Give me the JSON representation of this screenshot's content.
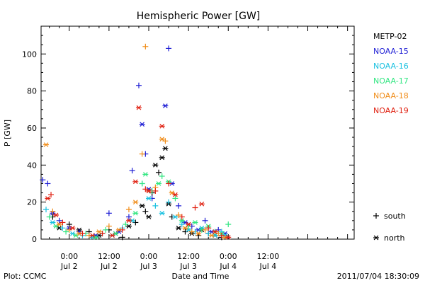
{
  "chart_data": {
    "type": "scatter",
    "title": "Hemispheric Power [GW]",
    "xlabel": "Date and Time",
    "ylabel": "P [GW]",
    "xlim_hours": [
      -8.5,
      86
    ],
    "ylim": [
      0,
      115
    ],
    "x_ticks": [
      {
        "hours": 0,
        "time": "0:00",
        "date": "Jul 2"
      },
      {
        "hours": 12,
        "time": "12:00",
        "date": "Jul 2"
      },
      {
        "hours": 24,
        "time": "0:00",
        "date": "Jul 3"
      },
      {
        "hours": 36,
        "time": "12:00",
        "date": "Jul 3"
      },
      {
        "hours": 48,
        "time": "0:00",
        "date": "Jul 4"
      },
      {
        "hours": 60,
        "time": "12:00",
        "date": "Jul 4"
      }
    ],
    "y_ticks": [
      0,
      20,
      40,
      60,
      80,
      100
    ],
    "legend": {
      "placement": "right",
      "markers": [
        {
          "symbol": "+",
          "label": "south"
        },
        {
          "symbol": "*",
          "label": "north"
        }
      ]
    },
    "series": [
      {
        "name": "METP-02",
        "color": "#000000",
        "points": [
          [
            -5,
            12,
            "+"
          ],
          [
            -3,
            6,
            "*"
          ],
          [
            0,
            8,
            "+"
          ],
          [
            3,
            5,
            "*"
          ],
          [
            6,
            4,
            "+"
          ],
          [
            9,
            2,
            "*"
          ],
          [
            12,
            5,
            "+"
          ],
          [
            14,
            3,
            "*"
          ],
          [
            16,
            1,
            "+"
          ],
          [
            18,
            7,
            "*"
          ],
          [
            20,
            9,
            "+"
          ],
          [
            22,
            18,
            "*"
          ],
          [
            23,
            15,
            "+"
          ],
          [
            24,
            12,
            "*"
          ],
          [
            25,
            25,
            "+"
          ],
          [
            26,
            40,
            "*"
          ],
          [
            27,
            36,
            "+"
          ],
          [
            28,
            44,
            "*"
          ],
          [
            29,
            49,
            "*"
          ],
          [
            30,
            19,
            "*"
          ],
          [
            31,
            12,
            "+"
          ],
          [
            33,
            6,
            "*"
          ],
          [
            35,
            4,
            "+"
          ],
          [
            37,
            3,
            "*"
          ],
          [
            39,
            2,
            "+"
          ],
          [
            40,
            5,
            "*"
          ],
          [
            42,
            3,
            "+"
          ],
          [
            44,
            2,
            "*"
          ],
          [
            46,
            1,
            "+"
          ]
        ]
      },
      {
        "name": "NOAA-15",
        "color": "#1c1cd4",
        "points": [
          [
            -8,
            32,
            "+"
          ],
          [
            -6.5,
            30,
            "+"
          ],
          [
            -5,
            14,
            "*"
          ],
          [
            -3,
            10,
            "+"
          ],
          [
            0,
            6,
            "*"
          ],
          [
            3,
            4,
            "+"
          ],
          [
            8,
            2,
            "*"
          ],
          [
            12,
            14,
            "+"
          ],
          [
            15,
            4,
            "*"
          ],
          [
            18,
            12,
            "+"
          ],
          [
            19,
            37,
            "+"
          ],
          [
            21,
            83,
            "+"
          ],
          [
            22,
            62,
            "*"
          ],
          [
            23,
            46,
            "+"
          ],
          [
            24,
            27,
            "*"
          ],
          [
            25,
            22,
            "+"
          ],
          [
            29,
            72,
            "*"
          ],
          [
            30,
            103,
            "+"
          ],
          [
            31,
            30,
            "*"
          ],
          [
            33,
            18,
            "+"
          ],
          [
            35,
            9,
            "*"
          ],
          [
            37,
            7,
            "+"
          ],
          [
            39,
            5,
            "*"
          ],
          [
            41,
            10,
            "+"
          ],
          [
            43,
            4,
            "*"
          ],
          [
            45,
            5,
            "+"
          ],
          [
            47,
            3,
            "*"
          ]
        ]
      },
      {
        "name": "NOAA-16",
        "color": "#18c0e0",
        "points": [
          [
            -7,
            16,
            "+"
          ],
          [
            -5,
            9,
            "*"
          ],
          [
            -2,
            6,
            "+"
          ],
          [
            1,
            3,
            "*"
          ],
          [
            4,
            2,
            "+"
          ],
          [
            7,
            1,
            "*"
          ],
          [
            10,
            3,
            "+"
          ],
          [
            13,
            2,
            "*"
          ],
          [
            16,
            6,
            "+"
          ],
          [
            19,
            10,
            "*"
          ],
          [
            22,
            30,
            "+"
          ],
          [
            24,
            22,
            "*"
          ],
          [
            26,
            18,
            "+"
          ],
          [
            28,
            14,
            "*"
          ],
          [
            30,
            20,
            "+"
          ],
          [
            32,
            12,
            "*"
          ],
          [
            34,
            8,
            "+"
          ],
          [
            36,
            5,
            "*"
          ],
          [
            38,
            4,
            "+"
          ],
          [
            40,
            6,
            "*"
          ],
          [
            42,
            3,
            "+"
          ],
          [
            44,
            2,
            "*"
          ],
          [
            46,
            4,
            "+"
          ],
          [
            47,
            2,
            "*"
          ]
        ]
      },
      {
        "name": "NOAA-17",
        "color": "#30e680",
        "points": [
          [
            -6,
            12,
            "+"
          ],
          [
            -4,
            7,
            "*"
          ],
          [
            -1,
            4,
            "+"
          ],
          [
            2,
            2,
            "*"
          ],
          [
            5,
            3,
            "+"
          ],
          [
            8,
            1,
            "*"
          ],
          [
            11,
            5,
            "+"
          ],
          [
            14,
            3,
            "*"
          ],
          [
            17,
            8,
            "+"
          ],
          [
            20,
            14,
            "*"
          ],
          [
            22,
            30,
            "+"
          ],
          [
            23,
            35,
            "*"
          ],
          [
            25,
            26,
            "+"
          ],
          [
            27,
            30,
            "*"
          ],
          [
            28,
            34,
            "+"
          ],
          [
            30,
            31,
            "*"
          ],
          [
            32,
            22,
            "+"
          ],
          [
            34,
            10,
            "*"
          ],
          [
            36,
            7,
            "+"
          ],
          [
            38,
            9,
            "*"
          ],
          [
            40,
            5,
            "+"
          ],
          [
            42,
            7,
            "*"
          ],
          [
            44,
            4,
            "+"
          ],
          [
            46,
            3,
            "*"
          ],
          [
            48,
            8,
            "+"
          ]
        ]
      },
      {
        "name": "NOAA-18",
        "color": "#f08c18",
        "points": [
          [
            -7,
            51,
            "*"
          ],
          [
            -5,
            15,
            "+"
          ],
          [
            -3,
            8,
            "*"
          ],
          [
            0,
            5,
            "+"
          ],
          [
            3,
            3,
            "*"
          ],
          [
            6,
            2,
            "+"
          ],
          [
            9,
            4,
            "*"
          ],
          [
            12,
            7,
            "+"
          ],
          [
            15,
            5,
            "*"
          ],
          [
            18,
            16,
            "+"
          ],
          [
            20,
            20,
            "*"
          ],
          [
            22,
            46,
            "+"
          ],
          [
            23,
            104,
            "+"
          ],
          [
            24,
            26,
            "*"
          ],
          [
            26,
            28,
            "+"
          ],
          [
            28,
            54,
            "*"
          ],
          [
            29,
            53,
            "+"
          ],
          [
            31,
            25,
            "*"
          ],
          [
            33,
            13,
            "+"
          ],
          [
            35,
            6,
            "*"
          ],
          [
            37,
            4,
            "+"
          ],
          [
            39,
            3,
            "*"
          ],
          [
            41,
            5,
            "+"
          ],
          [
            43,
            2,
            "*"
          ],
          [
            45,
            3,
            "+"
          ],
          [
            47,
            1,
            "*"
          ]
        ]
      },
      {
        "name": "NOAA-19",
        "color": "#e02010",
        "points": [
          [
            -6.5,
            22,
            "*"
          ],
          [
            -5.5,
            24,
            "+"
          ],
          [
            -4,
            13,
            "*"
          ],
          [
            -2,
            9,
            "+"
          ],
          [
            1,
            6,
            "*"
          ],
          [
            4,
            3,
            "+"
          ],
          [
            7,
            2,
            "*"
          ],
          [
            10,
            3,
            "+"
          ],
          [
            13,
            2,
            "*"
          ],
          [
            16,
            5,
            "+"
          ],
          [
            18,
            10,
            "*"
          ],
          [
            20,
            31,
            "*"
          ],
          [
            21,
            71,
            "*"
          ],
          [
            23,
            27,
            "+"
          ],
          [
            24,
            26,
            "*"
          ],
          [
            26,
            26,
            "+"
          ],
          [
            28,
            61,
            "*"
          ],
          [
            30,
            30,
            "+"
          ],
          [
            32,
            24,
            "*"
          ],
          [
            34,
            12,
            "+"
          ],
          [
            36,
            8,
            "*"
          ],
          [
            38,
            17,
            "+"
          ],
          [
            40,
            19,
            "*"
          ],
          [
            42,
            6,
            "+"
          ],
          [
            44,
            4,
            "*"
          ],
          [
            46,
            2,
            "+"
          ],
          [
            48,
            1,
            "*"
          ]
        ]
      }
    ]
  },
  "footer": {
    "left": "Plot: CCMC",
    "right": "2011/07/04 18:30:09"
  }
}
